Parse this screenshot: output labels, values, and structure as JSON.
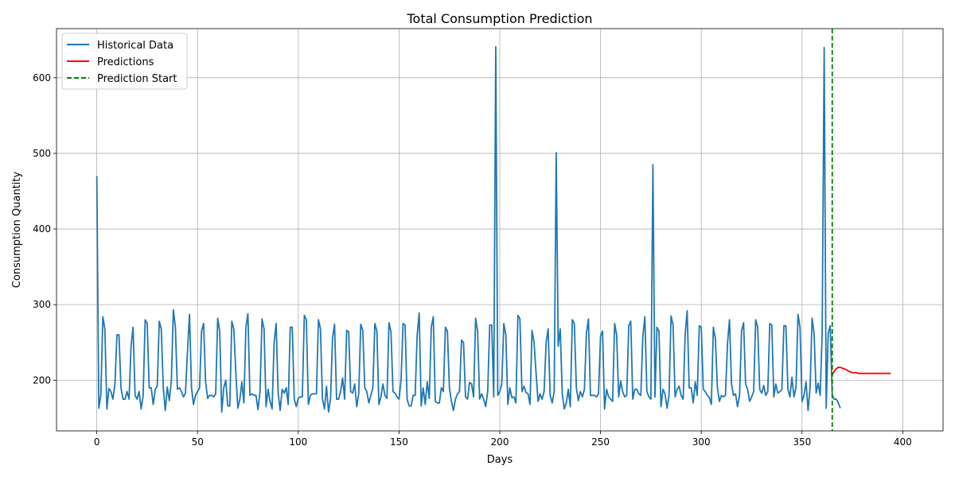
{
  "chart_data": {
    "type": "line",
    "title": "Total Consumption Prediction",
    "xlabel": "Days",
    "ylabel": "Consumption Quantity",
    "xlim": [
      -20,
      420
    ],
    "ylim": [
      133,
      665
    ],
    "x_ticks": [
      0,
      50,
      100,
      150,
      200,
      250,
      300,
      350,
      400
    ],
    "y_ticks": [
      200,
      300,
      400,
      500,
      600
    ],
    "grid": true,
    "legend_position": "top-left",
    "series": [
      {
        "name": "Historical Data",
        "color": "#1f77b4",
        "style": "solid",
        "x_start": 0,
        "values": [
          470,
          163,
          180,
          284,
          268,
          162,
          189,
          185,
          175,
          195,
          260,
          260,
          190,
          175,
          175,
          185,
          175,
          245,
          270,
          180,
          175,
          185,
          162,
          180,
          280,
          275,
          190,
          190,
          168,
          188,
          192,
          278,
          268,
          190,
          160,
          191,
          173,
          200,
          293,
          270,
          188,
          190,
          185,
          178,
          183,
          238,
          287,
          190,
          168,
          180,
          185,
          190,
          265,
          275,
          198,
          176,
          180,
          180,
          178,
          182,
          282,
          265,
          158,
          190,
          200,
          166,
          166,
          278,
          268,
          210,
          163,
          175,
          198,
          170,
          270,
          288,
          180,
          182,
          180,
          180,
          161,
          185,
          281,
          268,
          165,
          188,
          172,
          162,
          250,
          275,
          183,
          160,
          188,
          183,
          190,
          168,
          270,
          270,
          175,
          165,
          176,
          178,
          178,
          286,
          280,
          168,
          180,
          182,
          182,
          182,
          280,
          268,
          175,
          162,
          192,
          158,
          175,
          256,
          274,
          175,
          175,
          185,
          203,
          175,
          266,
          264,
          185,
          183,
          195,
          165,
          182,
          274,
          266,
          190,
          185,
          170,
          180,
          190,
          275,
          265,
          168,
          178,
          195,
          180,
          176,
          276,
          264,
          185,
          183,
          178,
          175,
          200,
          275,
          273,
          175,
          166,
          166,
          180,
          180,
          260,
          289,
          166,
          190,
          168,
          198,
          176,
          270,
          284,
          172,
          170,
          170,
          190,
          185,
          270,
          265,
          190,
          172,
          160,
          175,
          182,
          185,
          253,
          250,
          178,
          175,
          197,
          195,
          178,
          282,
          265,
          175,
          182,
          175,
          165,
          185,
          273,
          273,
          178,
          641,
          180,
          185,
          195,
          275,
          260,
          168,
          190,
          177,
          178,
          170,
          286,
          281,
          185,
          192,
          184,
          182,
          168,
          266,
          250,
          210,
          172,
          182,
          175,
          185,
          250,
          268,
          180,
          170,
          185,
          501,
          245,
          268,
          182,
          162,
          170,
          188,
          165,
          280,
          275,
          190,
          173,
          185,
          178,
          188,
          262,
          281,
          180,
          180,
          180,
          178,
          182,
          258,
          265,
          162,
          188,
          178,
          175,
          172,
          275,
          260,
          178,
          199,
          185,
          178,
          180,
          272,
          278,
          175,
          188,
          188,
          182,
          180,
          258,
          284,
          185,
          178,
          175,
          485,
          178,
          270,
          265,
          165,
          188,
          182,
          163,
          180,
          285,
          273,
          178,
          188,
          192,
          180,
          175,
          260,
          292,
          190,
          190,
          170,
          198,
          180,
          272,
          270,
          188,
          185,
          180,
          177,
          168,
          270,
          255,
          190,
          172,
          180,
          178,
          180,
          248,
          280,
          195,
          180,
          182,
          165,
          180,
          265,
          276,
          195,
          188,
          172,
          178,
          185,
          280,
          270,
          188,
          183,
          193,
          180,
          185,
          275,
          273,
          178,
          195,
          183,
          185,
          188,
          272,
          272,
          188,
          178,
          204,
          178,
          190,
          287,
          270,
          172,
          180,
          198,
          160,
          190,
          282,
          262,
          183,
          196,
          180,
          262,
          640,
          163,
          262,
          272,
          180,
          175,
          175,
          170,
          163
        ]
      },
      {
        "name": "Predictions",
        "color": "#ff0000",
        "style": "solid",
        "x": [
          365,
          366,
          367,
          368,
          369,
          370,
          371,
          372,
          373,
          374,
          375,
          376,
          377,
          378,
          379,
          380,
          381,
          382,
          383,
          384,
          385,
          386,
          387,
          388,
          389,
          390,
          391,
          392,
          393,
          394
        ],
        "values": [
          207,
          212,
          215,
          217,
          217,
          216,
          215,
          214,
          212,
          211,
          210,
          210,
          210,
          209,
          209,
          209,
          209,
          209,
          209,
          209,
          209,
          209,
          209,
          209,
          209,
          209,
          209,
          209,
          209,
          209
        ]
      }
    ],
    "markers": [
      {
        "name": "Prediction Start",
        "x": 365,
        "color": "#008000",
        "style": "dashed"
      }
    ]
  }
}
